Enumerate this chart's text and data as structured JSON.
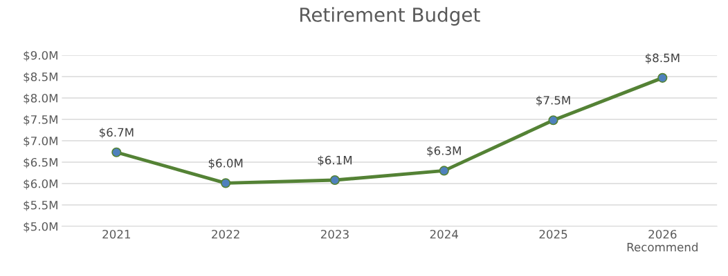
{
  "chart_data": {
    "type": "line",
    "title": "Retirement Budget",
    "categories": [
      "2021",
      "2022",
      "2023",
      "2024",
      "2025",
      "2026\nRecommend"
    ],
    "series": [
      {
        "color": "#548235",
        "values": [
          6.73,
          6.01,
          6.08,
          6.3,
          7.48,
          8.47
        ],
        "value_labels": [
          "$6.7M",
          "$6.0M",
          "$6.1M",
          "$6.3M",
          "$7.5M",
          "$8.5M"
        ]
      }
    ],
    "ylim": [
      5.0,
      9.0
    ],
    "yticks": [
      {
        "value": 5.0,
        "label": "$5.0M"
      },
      {
        "value": 5.5,
        "label": "$5.5M"
      },
      {
        "value": 6.0,
        "label": "$6.0M"
      },
      {
        "value": 6.5,
        "label": "$6.5M"
      },
      {
        "value": 7.0,
        "label": "$7.0M"
      },
      {
        "value": 7.5,
        "label": "$7.5M"
      },
      {
        "value": 8.0,
        "label": "$8.0M"
      },
      {
        "value": 8.5,
        "label": "$8.5M"
      },
      {
        "value": 9.0,
        "label": "$9.0M"
      }
    ],
    "grid": "y",
    "marker": "circle",
    "line_style": "solid"
  }
}
